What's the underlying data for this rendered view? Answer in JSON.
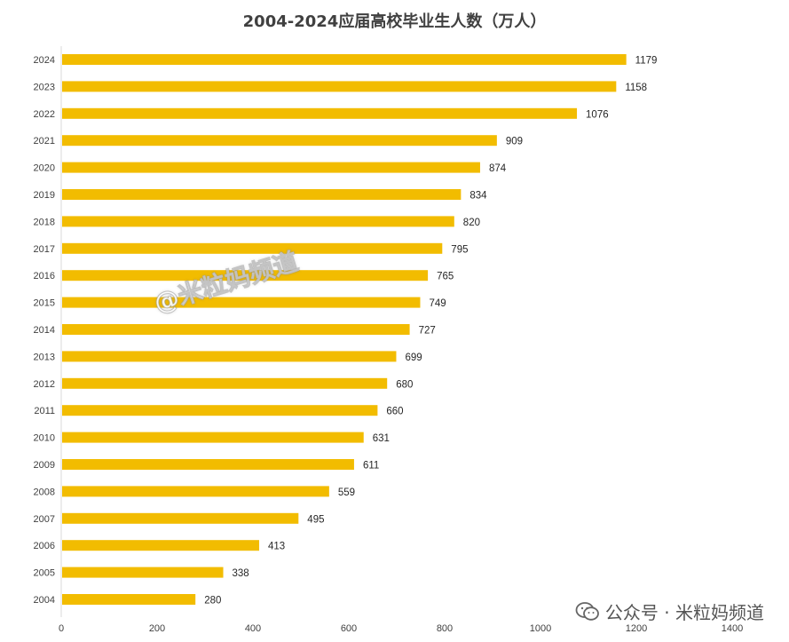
{
  "chart_data": {
    "type": "bar",
    "orientation": "horizontal",
    "title": "2004-2024应届高校毕业生人数（万人）",
    "categories": [
      "2024",
      "2023",
      "2022",
      "2021",
      "2020",
      "2019",
      "2018",
      "2017",
      "2016",
      "2015",
      "2014",
      "2013",
      "2012",
      "2011",
      "2010",
      "2009",
      "2008",
      "2007",
      "2006",
      "2005",
      "2004"
    ],
    "values": [
      1179,
      1158,
      1076,
      909,
      874,
      834,
      820,
      795,
      765,
      749,
      727,
      699,
      680,
      660,
      631,
      611,
      559,
      495,
      413,
      338,
      280
    ],
    "xlim": [
      0,
      1400
    ],
    "xticks": [
      "0",
      "200",
      "400",
      "600",
      "800",
      "1000",
      "1200",
      "1400"
    ],
    "grid": false,
    "legend": "none",
    "bar_color": "#F2BC00"
  },
  "watermark": "@米粒妈频道",
  "footer": {
    "icon": "wechat-icon",
    "text": "公众号 · 米粒妈频道"
  }
}
